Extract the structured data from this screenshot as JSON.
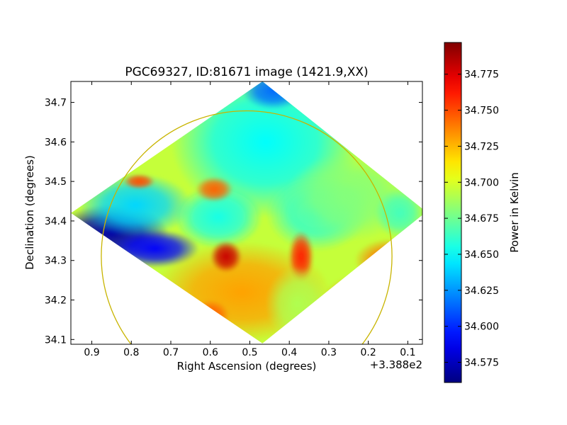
{
  "chart_data": {
    "type": "heatmap",
    "title": "PGC69327, ID:81671 image (1421.9,XX)",
    "xlabel": "Right Ascension (degrees)",
    "ylabel": "Declination (degrees)",
    "x_offset_label": "+3.388e2",
    "xlim": [
      0.953,
      0.063
    ],
    "ylim": [
      34.088,
      34.753
    ],
    "x_ticks": [
      0.9,
      0.8,
      0.7,
      0.6,
      0.5,
      0.4,
      0.3,
      0.2,
      0.1
    ],
    "x_tick_labels": [
      "0.9",
      "0.8",
      "0.7",
      "0.6",
      "0.5",
      "0.4",
      "0.3",
      "0.2",
      "0.1"
    ],
    "y_ticks": [
      34.1,
      34.2,
      34.3,
      34.4,
      34.5,
      34.6,
      34.7
    ],
    "y_tick_labels": [
      "34.1",
      "34.2",
      "34.3",
      "34.4",
      "34.5",
      "34.6",
      "34.7"
    ],
    "colorbar": {
      "label": "Power in Kelvin",
      "colormap": "jet",
      "range": [
        34.561,
        34.797
      ],
      "ticks": [
        34.575,
        34.6,
        34.625,
        34.65,
        34.675,
        34.7,
        34.725,
        34.75,
        34.775
      ],
      "tick_labels": [
        "34.575",
        "34.600",
        "34.625",
        "34.650",
        "34.675",
        "34.700",
        "34.725",
        "34.750",
        "34.775"
      ]
    },
    "map_footprint": [
      {
        "ra": 0.468,
        "dec": 34.753
      },
      {
        "ra": 0.053,
        "dec": 34.423
      },
      {
        "ra": 0.468,
        "dec": 34.09
      },
      {
        "ra": 0.953,
        "dec": 34.42
      }
    ],
    "circle": {
      "center_ra": 0.508,
      "center_dec": 34.311,
      "radius_deg": 0.368,
      "color": "#c8b400"
    },
    "background_value": 34.695,
    "features": [
      {
        "ra": 0.85,
        "dec": 34.37,
        "value": 34.57,
        "spread_ra": 0.09,
        "spread_dec": 0.045
      },
      {
        "ra": 0.74,
        "dec": 34.33,
        "value": 34.59,
        "spread_ra": 0.07,
        "spread_dec": 0.03
      },
      {
        "ra": 0.79,
        "dec": 34.44,
        "value": 34.64,
        "spread_ra": 0.09,
        "spread_dec": 0.05
      },
      {
        "ra": 0.46,
        "dec": 34.6,
        "value": 34.65,
        "spread_ra": 0.15,
        "spread_dec": 0.12
      },
      {
        "ra": 0.58,
        "dec": 34.41,
        "value": 34.655,
        "spread_ra": 0.07,
        "spread_dec": 0.05
      },
      {
        "ra": 0.33,
        "dec": 34.42,
        "value": 34.66,
        "spread_ra": 0.08,
        "spread_dec": 0.06
      },
      {
        "ra": 0.44,
        "dec": 34.73,
        "value": 34.615,
        "spread_ra": 0.05,
        "spread_dec": 0.03
      },
      {
        "ra": 0.25,
        "dec": 34.46,
        "value": 34.68,
        "spread_ra": 0.1,
        "spread_dec": 0.07
      },
      {
        "ra": 0.52,
        "dec": 34.22,
        "value": 34.73,
        "spread_ra": 0.14,
        "spread_dec": 0.08
      },
      {
        "ra": 0.56,
        "dec": 34.31,
        "value": 34.78,
        "spread_ra": 0.025,
        "spread_dec": 0.025
      },
      {
        "ra": 0.78,
        "dec": 34.5,
        "value": 34.75,
        "spread_ra": 0.025,
        "spread_dec": 0.012
      },
      {
        "ra": 0.59,
        "dec": 34.48,
        "value": 34.745,
        "spread_ra": 0.03,
        "spread_dec": 0.02
      },
      {
        "ra": 0.37,
        "dec": 34.31,
        "value": 34.76,
        "spread_ra": 0.02,
        "spread_dec": 0.04
      },
      {
        "ra": 0.14,
        "dec": 34.3,
        "value": 34.74,
        "spread_ra": 0.06,
        "spread_dec": 0.035
      },
      {
        "ra": 0.22,
        "dec": 34.2,
        "value": 34.735,
        "spread_ra": 0.06,
        "spread_dec": 0.04
      },
      {
        "ra": 0.6,
        "dec": 34.16,
        "value": 34.745,
        "spread_ra": 0.03,
        "spread_dec": 0.025
      },
      {
        "ra": 0.38,
        "dec": 34.19,
        "value": 34.69,
        "spread_ra": 0.05,
        "spread_dec": 0.06
      },
      {
        "ra": 0.12,
        "dec": 34.42,
        "value": 34.665,
        "spread_ra": 0.04,
        "spread_dec": 0.04
      }
    ]
  }
}
